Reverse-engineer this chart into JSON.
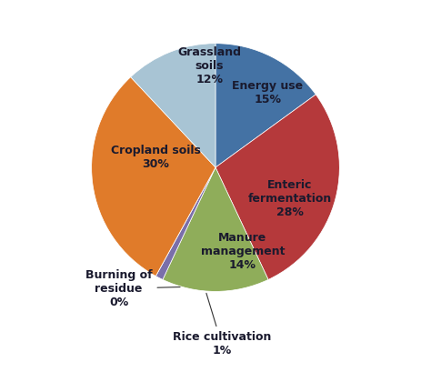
{
  "labels": [
    "Energy use",
    "Enteric\nfermentation",
    "Manure\nmanagement",
    "Rice cultivation",
    "Burning of\nresidue",
    "Cropland soils",
    "Grassland\nsoils"
  ],
  "values": [
    15,
    28,
    14,
    1,
    0,
    30,
    12
  ],
  "colors": [
    "#4472a4",
    "#b5393b",
    "#8fad5a",
    "#7a6faa",
    "#7a6faa",
    "#e07b2a",
    "#a8c4d4"
  ],
  "pct_labels": [
    "15%",
    "28%",
    "14%",
    "1%",
    "0%",
    "30%",
    "12%"
  ],
  "startangle": 90,
  "figsize": [
    4.74,
    4.09
  ],
  "dpi": 100,
  "background": "#ffffff",
  "text_color": "#1a1a2e",
  "fontsize": 9.0
}
